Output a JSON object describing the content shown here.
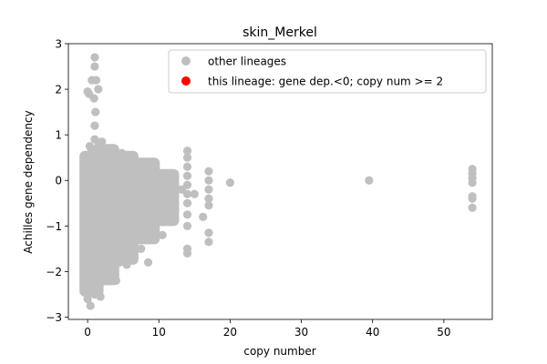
{
  "colors": {
    "other_lineages": "#bfbfbf",
    "this_lineage": "#ff0000",
    "axes": "#000000",
    "legend_border": "#cccccc"
  },
  "chart_data": {
    "type": "scatter",
    "title": "skin_Merkel",
    "xlabel": "copy number",
    "ylabel": "Achilles gene dependency",
    "xlim": [
      -2.7,
      56.8
    ],
    "ylim": [
      -3.05,
      3.0
    ],
    "xticks": [
      0,
      10,
      20,
      30,
      40,
      50
    ],
    "yticks": [
      -3,
      -2,
      -1,
      0,
      1,
      2,
      3
    ],
    "grid": false,
    "legend": {
      "placement": "top-right",
      "entries": [
        {
          "label": "other lineages",
          "series": "other_lineages"
        },
        {
          "label": "this lineage: gene dep.<0; copy num >= 2",
          "series": "this_lineage"
        }
      ]
    },
    "series": [
      {
        "key": "other_lineages",
        "name": "other lineages",
        "color": "#bfbfbf",
        "points": [
          [
            0.0,
            1.95
          ],
          [
            0.2,
            1.9
          ],
          [
            0.6,
            2.2
          ],
          [
            1.0,
            2.7
          ],
          [
            1.0,
            2.5
          ],
          [
            1.2,
            2.2
          ],
          [
            1.5,
            2.0
          ],
          [
            0.9,
            1.8
          ],
          [
            1.1,
            1.5
          ],
          [
            0.3,
            0.75
          ],
          [
            0.5,
            0.7
          ],
          [
            1.0,
            1.2
          ],
          [
            1.0,
            0.9
          ],
          [
            0.8,
            0.55
          ],
          [
            1.5,
            0.75
          ],
          [
            2.0,
            0.85
          ],
          [
            2.5,
            0.6
          ],
          [
            3.0,
            0.65
          ],
          [
            -0.2,
            0.2
          ],
          [
            0.0,
            0.4
          ],
          [
            0.2,
            -0.3
          ],
          [
            0.5,
            -0.6
          ],
          [
            0.1,
            -0.9
          ],
          [
            0.3,
            -1.2
          ],
          [
            0.6,
            -1.5
          ],
          [
            0.2,
            -1.8
          ],
          [
            0.4,
            -2.1
          ],
          [
            0.3,
            -2.4
          ],
          [
            0.0,
            -2.6
          ],
          [
            0.4,
            -2.75
          ],
          [
            1.0,
            -2.5
          ],
          [
            1.5,
            -2.3
          ],
          [
            1.8,
            -2.55
          ],
          [
            2.0,
            -2.2
          ],
          [
            1.0,
            -1.9
          ],
          [
            1.5,
            -1.6
          ],
          [
            2.5,
            -2.0
          ],
          [
            3.0,
            -1.9
          ],
          [
            3.5,
            -1.6
          ],
          [
            4.0,
            -2.2
          ],
          [
            4.5,
            -1.8
          ],
          [
            5.5,
            -1.85
          ],
          [
            6.0,
            -1.5
          ],
          [
            7.5,
            -1.5
          ],
          [
            8.5,
            -1.8
          ],
          [
            10.5,
            -1.2
          ],
          [
            2.0,
            0.3
          ],
          [
            2.5,
            -0.2
          ],
          [
            3.0,
            0.1
          ],
          [
            3.5,
            -0.5
          ],
          [
            4.0,
            0.2
          ],
          [
            4.5,
            -0.8
          ],
          [
            5.0,
            -0.1
          ],
          [
            5.5,
            0.3
          ],
          [
            6.0,
            -0.4
          ],
          [
            6.5,
            0.05
          ],
          [
            7.0,
            0.35
          ],
          [
            7.5,
            -0.5
          ],
          [
            8.0,
            0.0
          ],
          [
            8.5,
            -0.3
          ],
          [
            9.0,
            0.1
          ],
          [
            9.5,
            -0.6
          ],
          [
            10.0,
            -0.2
          ],
          [
            10.5,
            0.05
          ],
          [
            11.0,
            -0.4
          ],
          [
            11.5,
            -0.1
          ],
          [
            12.0,
            -0.7
          ],
          [
            11.2,
            0.0
          ],
          [
            7.2,
            0.35
          ],
          [
            5.8,
            0.5
          ],
          [
            4.8,
            0.6
          ],
          [
            3.8,
            0.45
          ],
          [
            14.0,
            0.65
          ],
          [
            14.0,
            0.5
          ],
          [
            14.0,
            0.3
          ],
          [
            14.0,
            0.1
          ],
          [
            14.0,
            -0.1
          ],
          [
            14.0,
            -0.3
          ],
          [
            14.0,
            -0.5
          ],
          [
            14.0,
            -0.75
          ],
          [
            14.0,
            -1.0
          ],
          [
            14.0,
            -1.5
          ],
          [
            14.0,
            -1.6
          ],
          [
            13.2,
            -0.2
          ],
          [
            15.0,
            -0.3
          ],
          [
            17.0,
            0.2
          ],
          [
            17.0,
            0.0
          ],
          [
            17.0,
            -0.2
          ],
          [
            17.0,
            -0.4
          ],
          [
            17.0,
            -0.55
          ],
          [
            17.0,
            -1.15
          ],
          [
            17.0,
            -1.35
          ],
          [
            16.2,
            -0.8
          ],
          [
            20.0,
            -0.05
          ],
          [
            39.5,
            0.0
          ],
          [
            54.0,
            0.25
          ],
          [
            54.0,
            0.15
          ],
          [
            54.0,
            0.05
          ],
          [
            54.0,
            -0.05
          ],
          [
            54.0,
            -0.35
          ],
          [
            54.0,
            -0.4
          ],
          [
            54.0,
            -0.6
          ]
        ]
      },
      {
        "key": "this_lineage",
        "name": "this lineage: gene dep.<0; copy num >= 2",
        "color": "#ff0000",
        "points": []
      }
    ]
  }
}
